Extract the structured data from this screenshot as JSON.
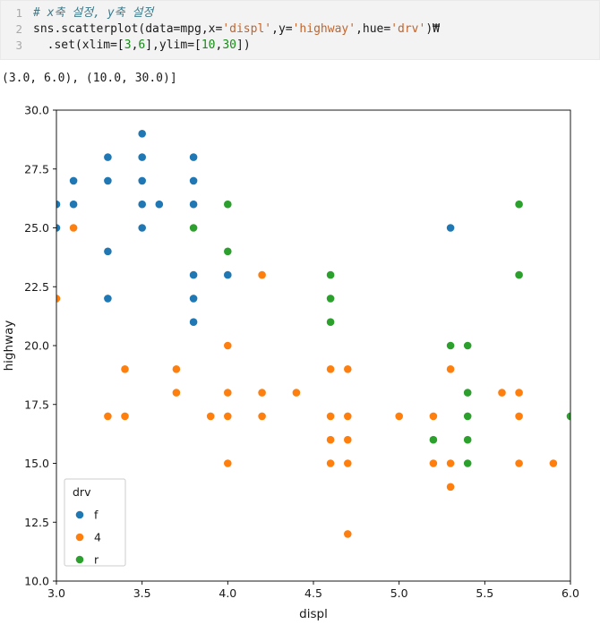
{
  "code_cell": {
    "token_colors": {
      "plain": "#1a1a1a",
      "comment": "#3d7b8c",
      "string": "#c4632a",
      "number": "#1a8a1a"
    },
    "lines": [
      {
        "number": "1",
        "segments": [
          {
            "t": "# x축 설정, y축 설정",
            "c": "comment"
          }
        ]
      },
      {
        "number": "2",
        "segments": [
          {
            "t": "sns.scatterplot(data=mpg,x=",
            "c": "plain"
          },
          {
            "t": "'displ'",
            "c": "string"
          },
          {
            "t": ",y=",
            "c": "plain"
          },
          {
            "t": "'highway'",
            "c": "string"
          },
          {
            "t": ",hue=",
            "c": "plain"
          },
          {
            "t": "'drv'",
            "c": "string"
          },
          {
            "t": ")₩",
            "c": "plain"
          }
        ]
      },
      {
        "number": "3",
        "segments": [
          {
            "t": "  .set(xlim=[",
            "c": "plain"
          },
          {
            "t": "3",
            "c": "number"
          },
          {
            "t": ",",
            "c": "plain"
          },
          {
            "t": "6",
            "c": "number"
          },
          {
            "t": "],ylim=[",
            "c": "plain"
          },
          {
            "t": "10",
            "c": "number"
          },
          {
            "t": ",",
            "c": "plain"
          },
          {
            "t": "30",
            "c": "number"
          },
          {
            "t": "])",
            "c": "plain"
          }
        ]
      }
    ]
  },
  "output_text": "(3.0, 6.0), (10.0, 30.0)]",
  "chart_data": {
    "type": "scatter",
    "title": "",
    "xlabel": "displ",
    "ylabel": "highway",
    "xlim": [
      3.0,
      6.0
    ],
    "ylim": [
      10.0,
      30.0
    ],
    "xticks": [
      3.0,
      3.5,
      4.0,
      4.5,
      5.0,
      5.5,
      6.0
    ],
    "yticks": [
      10.0,
      12.5,
      15.0,
      17.5,
      20.0,
      22.5,
      25.0,
      27.5,
      30.0
    ],
    "grid": false,
    "legend": {
      "title": "drv",
      "position": "lower left",
      "entries": [
        {
          "label": "f",
          "color": "#1f77b4"
        },
        {
          "label": "4",
          "color": "#ff7f0e"
        },
        {
          "label": "r",
          "color": "#2ca02c"
        }
      ]
    },
    "series": [
      {
        "name": "f",
        "color": "#1f77b4",
        "points": [
          [
            3.0,
            26
          ],
          [
            3.0,
            25
          ],
          [
            3.1,
            27
          ],
          [
            3.1,
            26
          ],
          [
            3.3,
            28
          ],
          [
            3.3,
            27
          ],
          [
            3.3,
            24
          ],
          [
            3.3,
            22
          ],
          [
            3.5,
            29
          ],
          [
            3.5,
            28
          ],
          [
            3.5,
            27
          ],
          [
            3.5,
            26
          ],
          [
            3.5,
            25
          ],
          [
            3.6,
            26
          ],
          [
            3.8,
            28
          ],
          [
            3.8,
            27
          ],
          [
            3.8,
            26
          ],
          [
            3.8,
            23
          ],
          [
            3.8,
            22
          ],
          [
            3.8,
            21
          ],
          [
            4.0,
            23
          ],
          [
            5.3,
            25
          ]
        ]
      },
      {
        "name": "4",
        "color": "#ff7f0e",
        "points": [
          [
            3.0,
            22
          ],
          [
            3.1,
            25
          ],
          [
            3.3,
            17
          ],
          [
            3.4,
            19
          ],
          [
            3.4,
            17
          ],
          [
            3.7,
            19
          ],
          [
            3.7,
            18
          ],
          [
            3.9,
            17
          ],
          [
            4.0,
            20
          ],
          [
            4.0,
            18
          ],
          [
            4.0,
            17
          ],
          [
            4.0,
            15
          ],
          [
            4.2,
            23
          ],
          [
            4.2,
            18
          ],
          [
            4.2,
            17
          ],
          [
            4.4,
            18
          ],
          [
            4.6,
            19
          ],
          [
            4.6,
            17
          ],
          [
            4.6,
            16
          ],
          [
            4.6,
            15
          ],
          [
            4.7,
            19
          ],
          [
            4.7,
            17
          ],
          [
            4.7,
            16
          ],
          [
            4.7,
            15
          ],
          [
            4.7,
            12
          ],
          [
            5.0,
            17
          ],
          [
            5.2,
            17
          ],
          [
            5.2,
            15
          ],
          [
            5.3,
            19
          ],
          [
            5.3,
            15
          ],
          [
            5.3,
            14
          ],
          [
            5.6,
            18
          ],
          [
            5.7,
            18
          ],
          [
            5.7,
            17
          ],
          [
            5.7,
            15
          ],
          [
            5.9,
            15
          ]
        ]
      },
      {
        "name": "r",
        "color": "#2ca02c",
        "points": [
          [
            3.8,
            25
          ],
          [
            4.0,
            26
          ],
          [
            4.0,
            24
          ],
          [
            4.6,
            23
          ],
          [
            4.6,
            22
          ],
          [
            4.6,
            21
          ],
          [
            5.2,
            16
          ],
          [
            5.3,
            20
          ],
          [
            5.4,
            20
          ],
          [
            5.4,
            18
          ],
          [
            5.4,
            17
          ],
          [
            5.4,
            16
          ],
          [
            5.4,
            15
          ],
          [
            5.7,
            26
          ],
          [
            5.7,
            23
          ],
          [
            6.0,
            17
          ]
        ]
      }
    ]
  }
}
